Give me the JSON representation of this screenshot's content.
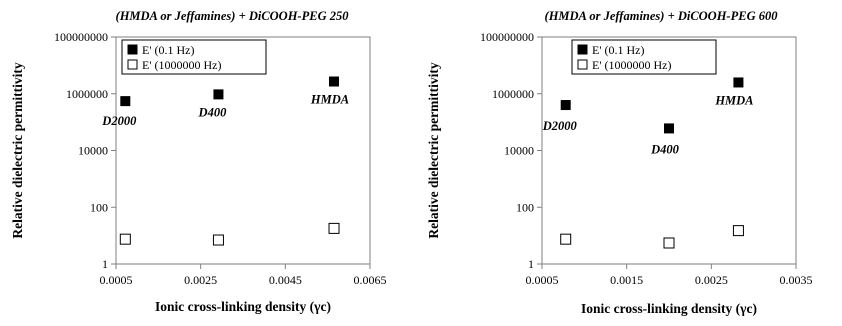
{
  "chart_data": [
    {
      "type": "scatter",
      "title": "(HMDA or Jeffamines) + DiCOOH-PEG 250",
      "xlabel": "Ionic cross-linking density (γc)",
      "ylabel": "Relative dielectric permittivity",
      "xlim": [
        0.0005,
        0.0065
      ],
      "xticks": [
        "0.0005",
        "0.0025",
        "0.0045",
        "0.0065"
      ],
      "xtick_values": [
        0.0005,
        0.0025,
        0.0045,
        0.0065
      ],
      "yscale": "log",
      "ylim": [
        1,
        100000000
      ],
      "yticks": [
        "1",
        "100",
        "10000",
        "1000000",
        "100000000"
      ],
      "ytick_values": [
        1,
        100,
        10000,
        1000000,
        100000000
      ],
      "legend_position": "top-left",
      "grid": false,
      "series": [
        {
          "name": "E' (0.1 Hz)",
          "marker": "filled-square",
          "color": "#000000",
          "x": [
            0.00072,
            0.00292,
            0.00565
          ],
          "y": [
            550000,
            950000,
            2700000
          ],
          "labels": [
            "D2000",
            "D400",
            "HMDA"
          ]
        },
        {
          "name": "E' (1000000 Hz)",
          "marker": "open-square",
          "color": "#000000",
          "x": [
            0.00072,
            0.00292,
            0.00565
          ],
          "y": [
            7.5,
            7,
            18
          ]
        }
      ]
    },
    {
      "type": "scatter",
      "title": "(HMDA or Jeffamines) + DiCOOH-PEG 600",
      "xlabel": "Ionic cross-linking density (γc)",
      "ylabel": "Relative dielectric permittivity",
      "xlim": [
        0.0005,
        0.0035
      ],
      "xticks": [
        "0.0005",
        "0.0015",
        "0.0025",
        "0.0035"
      ],
      "xtick_values": [
        0.0005,
        0.0015,
        0.0025,
        0.0035
      ],
      "yscale": "log",
      "ylim": [
        1,
        100000000
      ],
      "yticks": [
        "1",
        "100",
        "10000",
        "1000000",
        "100000000"
      ],
      "ytick_values": [
        1,
        100,
        10000,
        1000000,
        100000000
      ],
      "legend_position": "top-left",
      "grid": false,
      "series": [
        {
          "name": "E' (0.1 Hz)",
          "marker": "filled-square",
          "color": "#000000",
          "x": [
            0.00078,
            0.002,
            0.00282
          ],
          "y": [
            400000,
            60000,
            2500000
          ],
          "labels": [
            "D2000",
            "D400",
            "HMDA"
          ]
        },
        {
          "name": "E' (1000000 Hz)",
          "marker": "open-square",
          "color": "#000000",
          "x": [
            0.00078,
            0.002,
            0.00282
          ],
          "y": [
            7.5,
            5.5,
            15
          ]
        }
      ]
    }
  ]
}
